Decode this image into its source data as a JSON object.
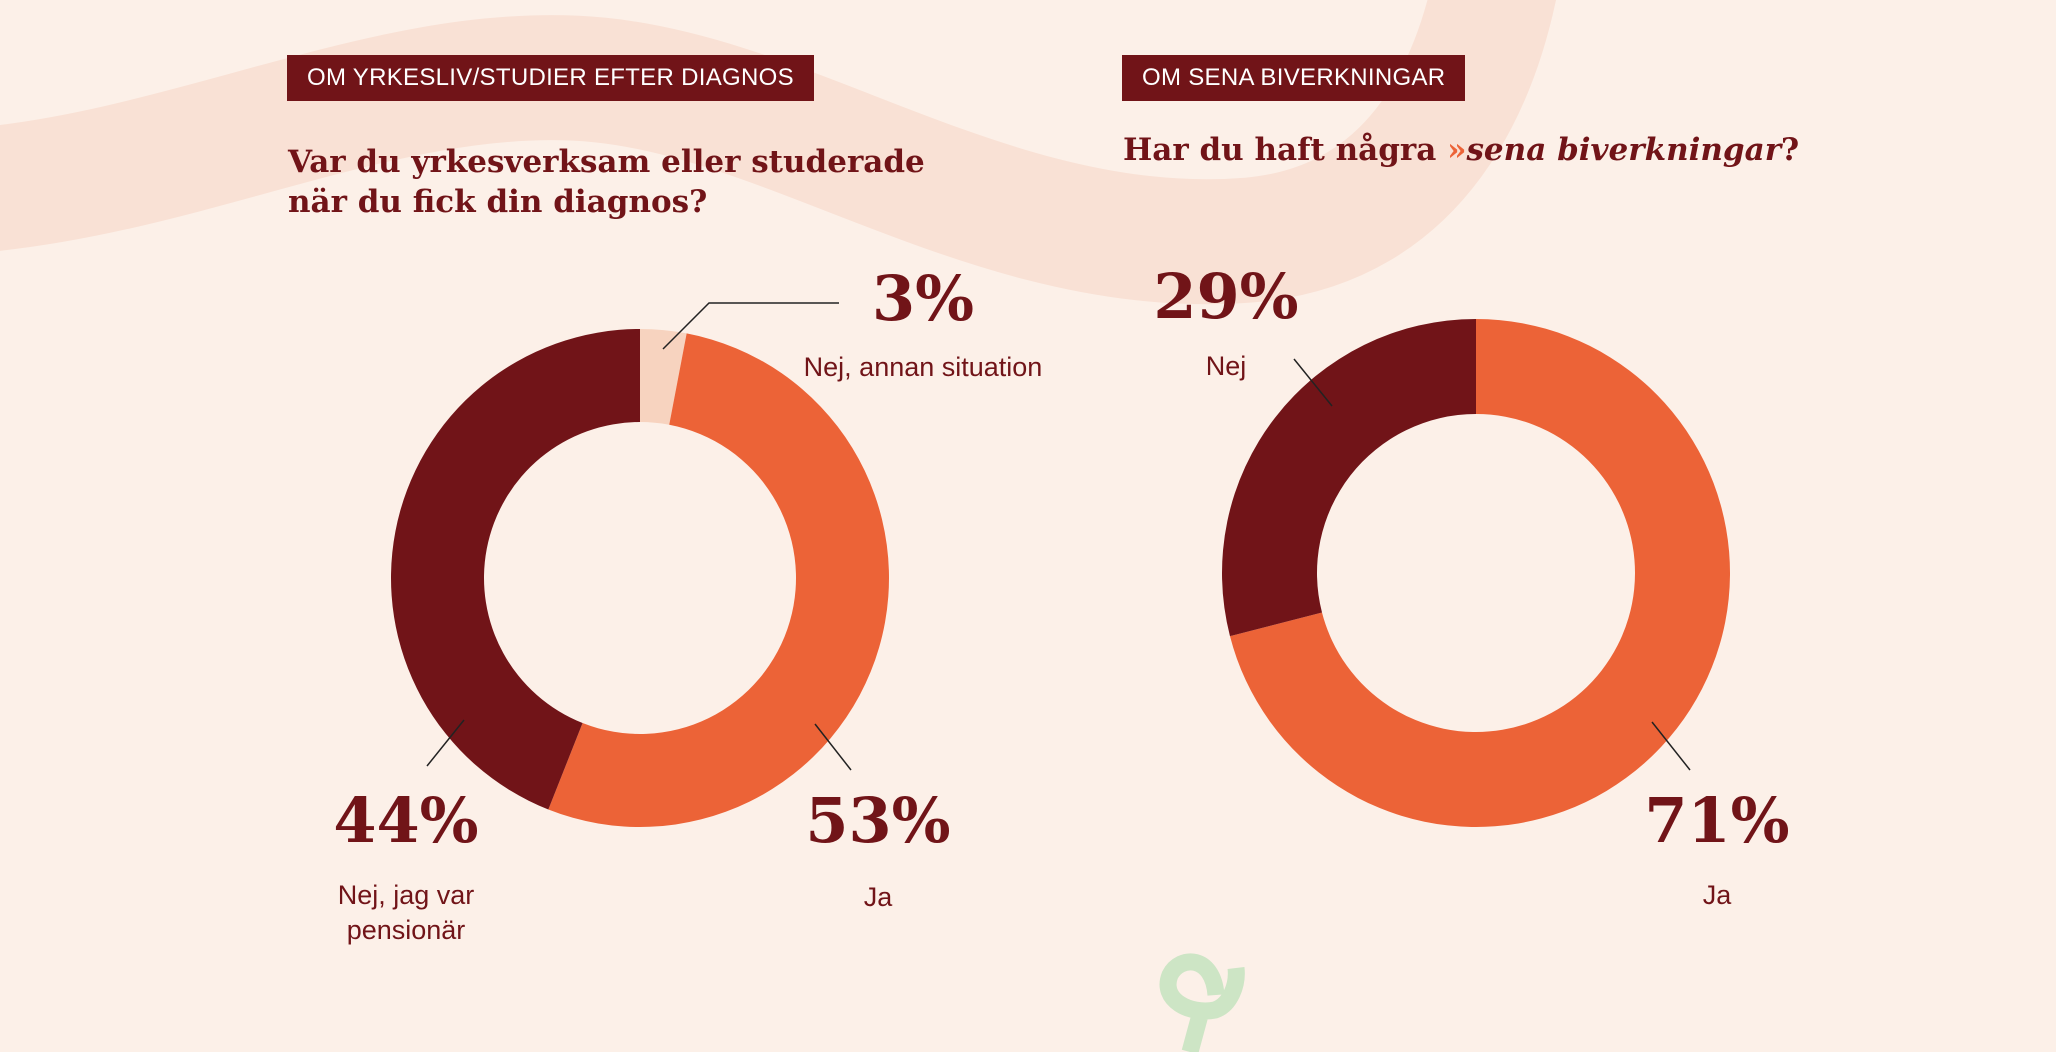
{
  "colors": {
    "background": "#fcf0e8",
    "swoosh": "#f9e1d5",
    "dark": "#711418",
    "orange": "#ec6337",
    "peach": "#f7d3bf",
    "green": "#cde5c5"
  },
  "left": {
    "tag": "OM YRKESLIV/STUDIER EFTER DIAGNOS",
    "title_line1": "Var du yrkesverksam eller studerade",
    "title_line2": "när du fick din diagnos?"
  },
  "right": {
    "tag": "OM SENA BIVERKNINGAR",
    "title_prefix": "Har du haft några",
    "title_arrow": "»",
    "title_emphasis": "sena biverkningar",
    "title_suffix": "?"
  },
  "chart_data": [
    {
      "type": "pie",
      "donut": true,
      "title": "Var du yrkesverksam eller studerade när du fick din diagnos?",
      "slices": [
        {
          "label": "Nej, annan situation",
          "value": 3,
          "pct_label": "3%",
          "color": "#f7d3bf"
        },
        {
          "label": "Ja",
          "value": 53,
          "pct_label": "53%",
          "color": "#ec6337"
        },
        {
          "label": "Nej, jag var pensionär",
          "value": 44,
          "pct_label": "44%",
          "color": "#711418"
        }
      ]
    },
    {
      "type": "pie",
      "donut": true,
      "title": "Har du haft några sena biverkningar?",
      "slices": [
        {
          "label": "Ja",
          "value": 71,
          "pct_label": "71%",
          "color": "#ec6337"
        },
        {
          "label": "Nej",
          "value": 29,
          "pct_label": "29%",
          "color": "#711418"
        }
      ]
    }
  ]
}
